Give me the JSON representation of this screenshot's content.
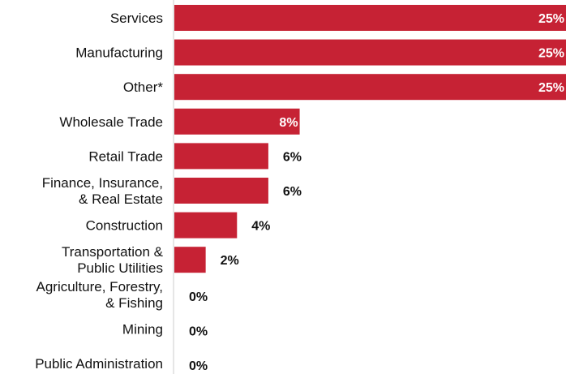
{
  "chart_data": {
    "type": "bar",
    "orientation": "horizontal",
    "title": "",
    "xlabel": "",
    "ylabel": "",
    "categories": [
      "Services",
      "Manufacturing",
      "Other*",
      "Wholesale Trade",
      "Retail Trade",
      "Finance, Insurance, & Real Estate",
      "Construction",
      "Transportation & Public Utilities",
      "Agriculture, Forestry, & Fishing",
      "Mining",
      "Public Administration"
    ],
    "category_lines": [
      [
        "Services"
      ],
      [
        "Manufacturing"
      ],
      [
        "Other*"
      ],
      [
        "Wholesale Trade"
      ],
      [
        "Retail Trade"
      ],
      [
        "Finance, Insurance,",
        "& Real Estate"
      ],
      [
        "Construction"
      ],
      [
        "Transportation &",
        "Public Utilities"
      ],
      [
        "Agriculture, Forestry,",
        "& Fishing"
      ],
      [
        "Mining"
      ],
      [
        "Public Administration"
      ]
    ],
    "values": [
      25,
      25,
      25,
      8,
      6,
      6,
      4,
      2,
      0,
      0,
      0
    ],
    "value_labels": [
      "25%",
      "25%",
      "25%",
      "8%",
      "6%",
      "6%",
      "4%",
      "2%",
      "0%",
      "0%",
      "0%"
    ],
    "xlim": [
      0,
      25
    ],
    "grid": false,
    "legend": "none",
    "colors": {
      "bar": "#C62234",
      "axis": "#CCCCCC",
      "label_inside": "#FFFFFF",
      "label_outside": "#111111"
    }
  }
}
